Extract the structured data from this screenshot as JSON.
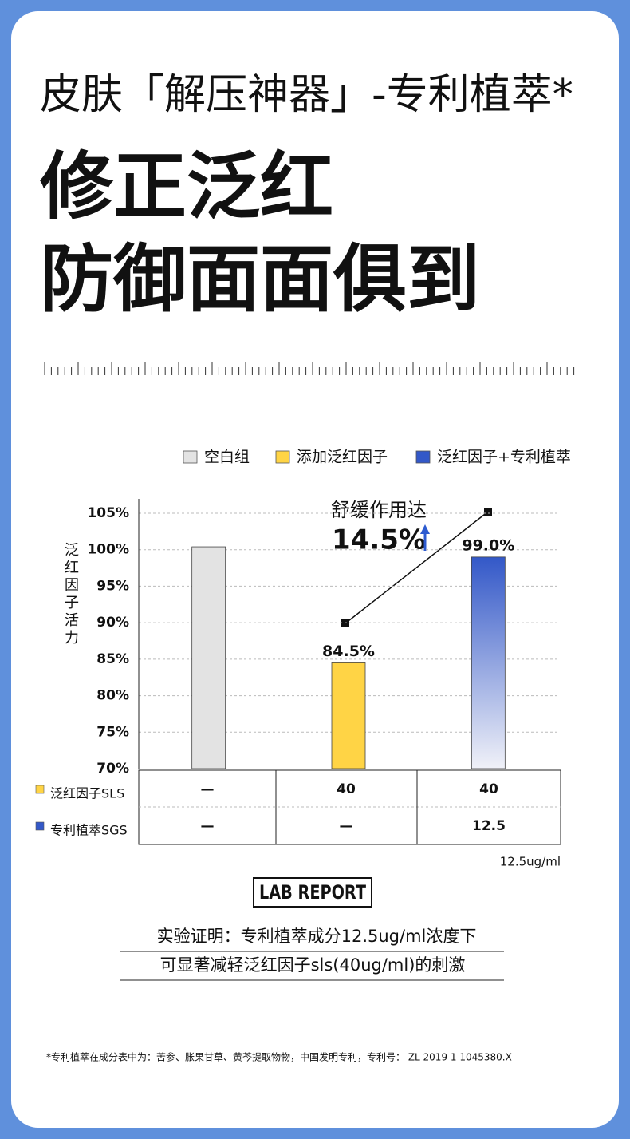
{
  "header": {
    "title": "皮肤「解压神器」-专利植萃*",
    "headline": [
      "修正泛红",
      "防御面面俱到"
    ]
  },
  "chart_data": {
    "type": "bar",
    "categories": [
      null,
      null,
      null
    ],
    "y_label": "泛红因子活力",
    "series": [
      {
        "name": "空白组",
        "color": "#e3e3e3",
        "values": [
          100.4,
          null,
          null
        ]
      },
      {
        "name": "添加泛红因子",
        "color": "#ffd445",
        "values": [
          null,
          84.5,
          null
        ],
        "value_labels": [
          null,
          "84.5%",
          null
        ]
      },
      {
        "name": "泛红因子+专利植萃",
        "color": "#3358c8",
        "values": [
          null,
          null,
          99.0
        ],
        "value_labels": [
          null,
          null,
          "99.0%"
        ]
      }
    ],
    "ylim": [
      70,
      105
    ],
    "yticks": [
      {
        "value": 70,
        "label": "70%"
      },
      {
        "value": 75,
        "label": "75%"
      },
      {
        "value": 80,
        "label": "80%"
      },
      {
        "value": 85,
        "label": "85%"
      },
      {
        "value": 90,
        "label": "90%"
      },
      {
        "value": 95,
        "label": "95%"
      },
      {
        "value": 100,
        "label": "100%"
      },
      {
        "value": 105,
        "label": "105%"
      }
    ],
    "grid": true,
    "annotation": {
      "text": "舒缓作用达",
      "value": "14.5%"
    }
  },
  "table": {
    "rows": [
      {
        "label": "泛红因子SLS",
        "cells": [
          "—",
          "40",
          "40"
        ]
      },
      {
        "label": "专利植萃SGS",
        "cells": [
          "—",
          "—",
          "12.5"
        ]
      }
    ],
    "unit": "12.5ug/ml"
  },
  "footer": {
    "badge": "LAB REPORT",
    "conclusion": [
      "实验证明：专利植萃成分12.5ug/ml浓度下",
      "可显著减轻泛红因子sls(40ug/ml)的刺激"
    ],
    "footnote": "*专利植萃在成分表中为：苦参、胀果甘草、黄芩提取物物，中国发明专利，专利号： ZL 2019 1 1045380.X"
  }
}
